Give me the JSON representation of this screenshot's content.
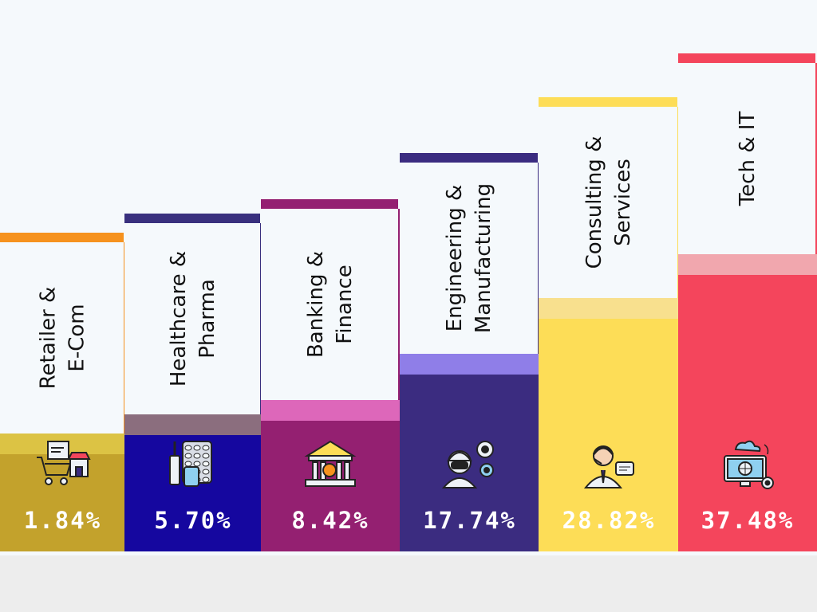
{
  "chart_data": {
    "type": "bar",
    "title": "",
    "xlabel": "",
    "ylabel": "",
    "ylim": [
      0,
      40
    ],
    "categories": [
      "Retailer & E-Com",
      "Healthcare & Pharma",
      "Banking & Finance",
      "Engineering & Manufacturing",
      "Consulting & Services",
      "Tech & IT"
    ],
    "values": [
      1.84,
      5.7,
      8.42,
      17.74,
      28.82,
      37.48
    ],
    "value_labels": [
      "1.84%",
      "5.70%",
      "8.42%",
      "17.74%",
      "28.82%",
      "37.48%"
    ],
    "colors": {
      "bars": [
        "#c3a22c",
        "#15079f",
        "#942071",
        "#3b2c80",
        "#fddd57",
        "#f4455c"
      ],
      "bands": [
        "#dcc344",
        "#8b6e7e",
        "#dd67ba",
        "#8f7ee8",
        "#f8e08e",
        "#f1a7ae"
      ],
      "top_lines": [
        "#f6921e",
        "#39307e",
        "#942071",
        "#3b2c80",
        "#fddd57",
        "#f4455c"
      ]
    },
    "icons": [
      "shopping-cart-store-icon",
      "pharma-pills-icon",
      "bank-bitcoin-icon",
      "engineer-gears-icon",
      "support-agent-icon",
      "computer-cloud-icon"
    ]
  }
}
